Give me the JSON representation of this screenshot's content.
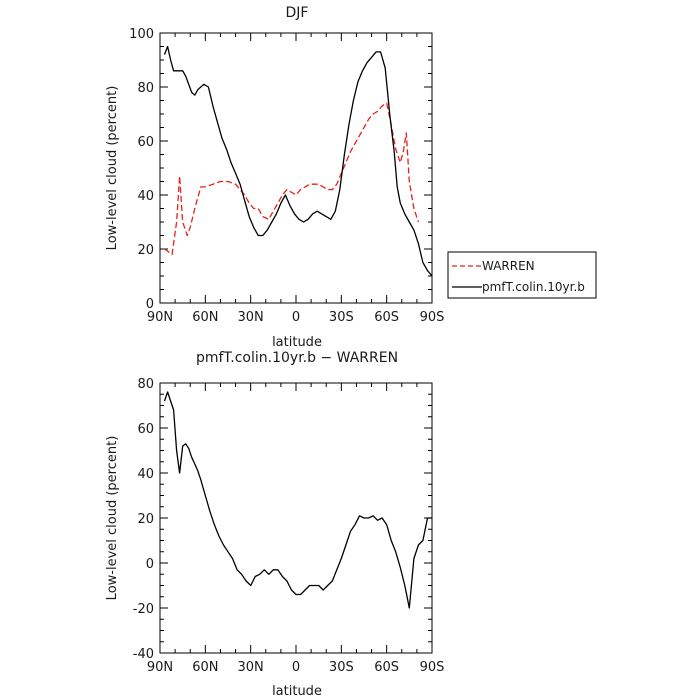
{
  "chart_data": [
    {
      "type": "line",
      "title": "DJF",
      "xlabel": "latitude",
      "ylabel": "Low-level cloud (percent)",
      "xticks": [
        -90,
        -60,
        -30,
        0,
        30,
        60,
        90
      ],
      "xtick_labels": [
        "90N",
        "60N",
        "30N",
        "0",
        "30S",
        "60S",
        "90S"
      ],
      "xlim": [
        -90,
        90
      ],
      "yticks": [
        0,
        20,
        40,
        60,
        80,
        100
      ],
      "ylim": [
        0,
        100
      ],
      "grid": false,
      "legend": "right",
      "series": [
        {
          "name": "WARREN",
          "color": "#e8221b",
          "dash": "dashed",
          "x": [
            -87,
            -82,
            -79,
            -77,
            -75,
            -72,
            -70,
            -67,
            -63,
            -60,
            -55,
            -50,
            -45,
            -40,
            -37,
            -34,
            -31,
            -28,
            -25,
            -22,
            -18,
            -15,
            -12,
            -9,
            -6,
            -3,
            0,
            3,
            6,
            9,
            12,
            15,
            18,
            21,
            24,
            27,
            30,
            33,
            36,
            39,
            42,
            45,
            48,
            51,
            54,
            57,
            60,
            63,
            66,
            69,
            71,
            73,
            75,
            78,
            81
          ],
          "y": [
            20,
            18,
            30,
            47,
            30,
            25,
            28,
            35,
            43,
            43,
            44,
            45,
            45,
            44,
            42,
            40,
            37,
            35,
            35,
            32,
            31,
            34,
            37,
            40,
            42,
            41,
            40,
            42,
            43,
            44,
            44,
            44,
            43,
            42,
            42,
            44,
            48,
            52,
            56,
            59,
            62,
            65,
            68,
            70,
            71,
            73,
            74,
            66,
            57,
            52,
            56,
            63,
            45,
            35,
            30
          ]
        },
        {
          "name": "pmfT.colin.10yr.b",
          "color": "#000000",
          "dash": "solid",
          "x": [
            -87,
            -85,
            -83,
            -81,
            -79,
            -77,
            -75,
            -73,
            -71,
            -69,
            -67,
            -65,
            -63,
            -61,
            -58,
            -55,
            -52,
            -49,
            -46,
            -43,
            -40,
            -37,
            -34,
            -31,
            -28,
            -25,
            -22,
            -19,
            -16,
            -13,
            -10,
            -7,
            -4,
            -1,
            2,
            5,
            8,
            11,
            14,
            17,
            20,
            23,
            26,
            29,
            32,
            35,
            38,
            41,
            44,
            47,
            50,
            53,
            56,
            59,
            62,
            65,
            67,
            69,
            72,
            75,
            78,
            81,
            84,
            87,
            90
          ],
          "y": [
            92,
            95,
            90,
            86,
            86,
            86,
            86,
            84,
            81,
            78,
            77,
            79,
            80,
            81,
            80,
            73,
            67,
            61,
            57,
            52,
            48,
            44,
            38,
            32,
            28,
            25,
            25,
            27,
            30,
            33,
            37,
            40,
            36,
            33,
            31,
            30,
            31,
            33,
            34,
            33,
            32,
            31,
            34,
            42,
            55,
            66,
            75,
            82,
            86,
            89,
            91,
            93,
            93,
            87,
            70,
            56,
            43,
            37,
            33,
            30,
            27,
            22,
            15,
            12,
            10
          ]
        }
      ]
    },
    {
      "type": "line",
      "title": "pmfT.colin.10yr.b − WARREN",
      "xlabel": "latitude",
      "ylabel": "Low-level cloud (percent)",
      "xticks": [
        -90,
        -60,
        -30,
        0,
        30,
        60,
        90
      ],
      "xtick_labels": [
        "90N",
        "60N",
        "30N",
        "0",
        "30S",
        "60S",
        "90S"
      ],
      "xlim": [
        -90,
        90
      ],
      "yticks": [
        -40,
        -20,
        0,
        20,
        40,
        60,
        80
      ],
      "ylim": [
        -40,
        80
      ],
      "grid": false,
      "series": [
        {
          "color": "#000000",
          "dash": "solid",
          "x": [
            -87,
            -85,
            -83,
            -81,
            -79,
            -77,
            -75,
            -73,
            -71,
            -69,
            -67,
            -65,
            -63,
            -60,
            -57,
            -54,
            -51,
            -48,
            -45,
            -42,
            -39,
            -36,
            -33,
            -30,
            -27,
            -24,
            -21,
            -18,
            -15,
            -12,
            -9,
            -6,
            -3,
            0,
            3,
            6,
            9,
            12,
            15,
            18,
            21,
            24,
            27,
            30,
            33,
            36,
            39,
            42,
            45,
            48,
            51,
            54,
            57,
            60,
            63,
            66,
            69,
            72,
            75,
            78,
            81,
            84,
            87,
            90
          ],
          "y": [
            72,
            76,
            72,
            68,
            50,
            40,
            52,
            53,
            51,
            47,
            44,
            41,
            37,
            30,
            23,
            17,
            12,
            8,
            5,
            2,
            -3,
            -5,
            -8,
            -10,
            -6,
            -5,
            -3,
            -5,
            -3,
            -3,
            -6,
            -8,
            -12,
            -14,
            -14,
            -12,
            -10,
            -10,
            -10,
            -12,
            -10,
            -8,
            -3,
            2,
            8,
            14,
            17,
            21,
            20,
            20,
            21,
            19,
            20,
            17,
            10,
            5,
            -2,
            -10,
            -20,
            2,
            8,
            10,
            20,
            20
          ]
        }
      ]
    }
  ]
}
